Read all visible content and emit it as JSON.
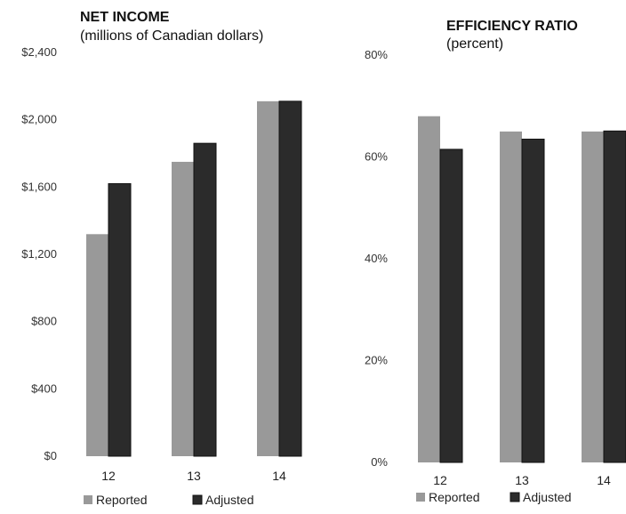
{
  "colors": {
    "reported": "#999999",
    "adjusted": "#2b2b2b"
  },
  "chart_data": [
    {
      "type": "bar",
      "title": "NET INCOME",
      "subtitle": "(millions of Canadian dollars)",
      "categories": [
        "12",
        "13",
        "14"
      ],
      "series": [
        {
          "name": "Reported",
          "values": [
            1320,
            1750,
            2110
          ]
        },
        {
          "name": "Adjusted",
          "values": [
            1620,
            1860,
            2110
          ]
        }
      ],
      "ylim": [
        0,
        2400
      ],
      "yticks": [
        0,
        400,
        800,
        1200,
        1600,
        2000,
        2400
      ],
      "ytick_labels": [
        "$0",
        "$400",
        "$800",
        "$1,200",
        "$1,600",
        "$2,000",
        "$2,400"
      ],
      "grid": false,
      "legend": "bottom"
    },
    {
      "type": "bar",
      "title": "EFFICIENCY RATIO",
      "subtitle": "(percent)",
      "categories": [
        "12",
        "13",
        "14"
      ],
      "series": [
        {
          "name": "Reported",
          "values": [
            68,
            65,
            65
          ]
        },
        {
          "name": "Adjusted",
          "values": [
            61.5,
            63.5,
            65.1
          ]
        }
      ],
      "ylim": [
        0,
        80
      ],
      "yticks": [
        0,
        20,
        40,
        60,
        80
      ],
      "ytick_labels": [
        "0%",
        "20%",
        "40%",
        "60%",
        "80%"
      ],
      "grid": false,
      "legend": "bottom"
    }
  ]
}
